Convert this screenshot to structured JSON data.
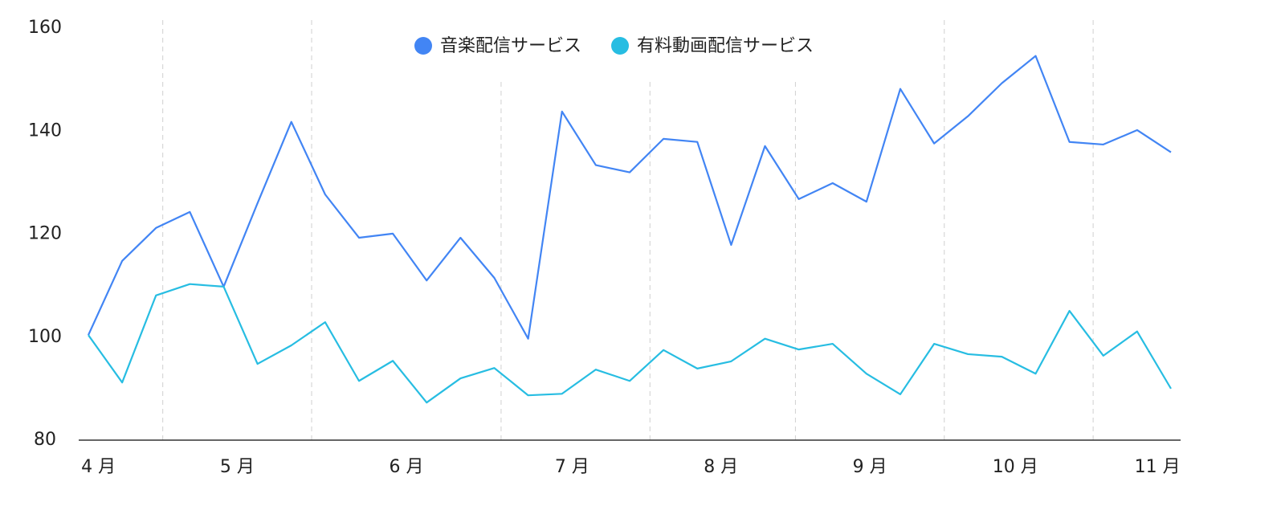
{
  "chart_data": {
    "type": "line",
    "x": [
      0,
      1,
      2,
      3,
      4,
      5,
      6,
      7,
      8,
      9,
      10,
      11,
      12,
      13,
      14,
      15,
      16,
      17,
      18,
      19,
      20,
      21,
      22,
      23,
      24,
      25,
      26,
      27,
      28,
      29,
      30,
      31,
      32
    ],
    "xlim": [
      0,
      32
    ],
    "xticks": [
      {
        "value": 0.3,
        "label": "4 月"
      },
      {
        "value": 4.4,
        "label": "5 月"
      },
      {
        "value": 9.4,
        "label": "6 月"
      },
      {
        "value": 14.3,
        "label": "7 月"
      },
      {
        "value": 18.7,
        "label": "8 月"
      },
      {
        "value": 23.1,
        "label": "9 月"
      },
      {
        "value": 27.4,
        "label": "10 月"
      },
      {
        "value": 31.6,
        "label": "11 月"
      }
    ],
    "xgrid": [
      2.2,
      6.6,
      12.2,
      16.6,
      20.9,
      25.3,
      29.7
    ],
    "ylim": [
      80,
      160
    ],
    "yticks": [
      80,
      100,
      120,
      140,
      160
    ],
    "legend": "top",
    "series": [
      {
        "name": "音楽配信サービス",
        "color": "#4285f4",
        "values": [
          100.4,
          114.8,
          121.2,
          124.3,
          109.8,
          126,
          141.8,
          127.7,
          119.3,
          120.1,
          111.0,
          119.3,
          111.5,
          99.7,
          143.8,
          133.4,
          132.0,
          138.5,
          137.9,
          117.9,
          137.1,
          126.8,
          129.9,
          126.3,
          148.2,
          137.6,
          142.9,
          149.3,
          154.6,
          137.9,
          137.4,
          140.2,
          135.9
        ]
      },
      {
        "name": "有料動画配信サービス",
        "color": "#27bde2",
        "values": [
          100.4,
          91.2,
          108.1,
          110.3,
          109.8,
          94.8,
          98.4,
          102.9,
          91.5,
          95.4,
          87.3,
          92.0,
          94.0,
          88.7,
          89.0,
          93.7,
          91.5,
          97.5,
          93.9,
          95.3,
          99.7,
          97.6,
          98.7,
          92.9,
          88.9,
          98.7,
          96.7,
          96.2,
          92.9,
          105.1,
          96.4,
          101.1,
          90.0
        ]
      }
    ]
  }
}
